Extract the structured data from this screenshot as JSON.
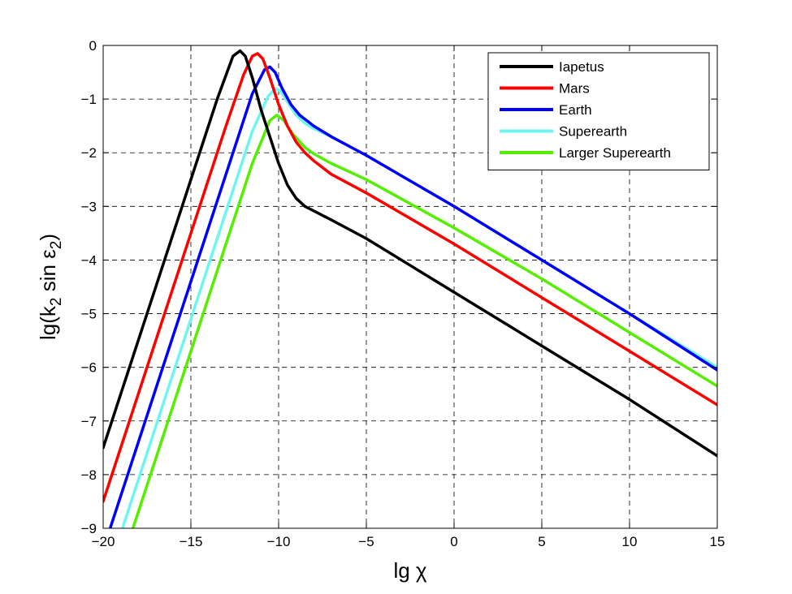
{
  "chart_data": {
    "type": "line",
    "title": "",
    "xlabel": "lg χ",
    "ylabel": {
      "prefix": "lg(k",
      "sub1": "2",
      "middle": " sin ε",
      "sub2": "2",
      "suffix": ")"
    },
    "xlim": [
      -20,
      15
    ],
    "ylim": [
      -9,
      0
    ],
    "xticks": [
      -20,
      -15,
      -10,
      -5,
      0,
      5,
      10,
      15
    ],
    "yticks": [
      0,
      -1,
      -2,
      -3,
      -4,
      -5,
      -6,
      -7,
      -8,
      -9
    ],
    "xtick_labels": [
      "−20",
      "−15",
      "−10",
      "−5",
      "0",
      "5",
      "10",
      "15"
    ],
    "ytick_labels": [
      "0",
      "−1",
      "−2",
      "−3",
      "−4",
      "−5",
      "−6",
      "−7",
      "−8",
      "−9"
    ],
    "grid": true,
    "legend_position": "top-right",
    "series": [
      {
        "name": "Iapetus",
        "color": "#000000",
        "points": [
          [
            -20,
            -7.5
          ],
          [
            -19,
            -6.5
          ],
          [
            -17,
            -4.5
          ],
          [
            -15,
            -2.5
          ],
          [
            -13.5,
            -1.0
          ],
          [
            -12.6,
            -0.2
          ],
          [
            -12.2,
            -0.1
          ],
          [
            -11.9,
            -0.2
          ],
          [
            -11.5,
            -0.6
          ],
          [
            -11,
            -1.2
          ],
          [
            -10.5,
            -1.7
          ],
          [
            -10,
            -2.2
          ],
          [
            -9.5,
            -2.6
          ],
          [
            -9,
            -2.85
          ],
          [
            -8.5,
            -3.0
          ],
          [
            -7,
            -3.25
          ],
          [
            -5,
            -3.6
          ],
          [
            0,
            -4.6
          ],
          [
            5,
            -5.6
          ],
          [
            10,
            -6.6
          ],
          [
            15,
            -7.65
          ]
        ]
      },
      {
        "name": "Mars",
        "color": "#ff0000",
        "points": [
          [
            -20,
            -8.5
          ],
          [
            -19,
            -7.5
          ],
          [
            -17,
            -5.5
          ],
          [
            -15,
            -3.5
          ],
          [
            -13,
            -1.5
          ],
          [
            -12,
            -0.55
          ],
          [
            -11.5,
            -0.2
          ],
          [
            -11.2,
            -0.15
          ],
          [
            -10.9,
            -0.25
          ],
          [
            -10.5,
            -0.6
          ],
          [
            -10,
            -1.1
          ],
          [
            -9.5,
            -1.5
          ],
          [
            -9,
            -1.8
          ],
          [
            -8.5,
            -2.0
          ],
          [
            -8,
            -2.15
          ],
          [
            -7,
            -2.4
          ],
          [
            -5,
            -2.75
          ],
          [
            0,
            -3.7
          ],
          [
            5,
            -4.7
          ],
          [
            10,
            -5.7
          ],
          [
            15,
            -6.7
          ]
        ]
      },
      {
        "name": "Earth",
        "color": "#0000ff",
        "points": [
          [
            -19.6,
            -9.0
          ],
          [
            -19,
            -8.4
          ],
          [
            -17,
            -6.4
          ],
          [
            -15,
            -4.4
          ],
          [
            -13,
            -2.4
          ],
          [
            -11.5,
            -0.9
          ],
          [
            -10.8,
            -0.45
          ],
          [
            -10.5,
            -0.4
          ],
          [
            -10.2,
            -0.5
          ],
          [
            -9.8,
            -0.8
          ],
          [
            -9.3,
            -1.1
          ],
          [
            -8.8,
            -1.3
          ],
          [
            -8,
            -1.5
          ],
          [
            -7,
            -1.7
          ],
          [
            -5,
            -2.05
          ],
          [
            0,
            -3.0
          ],
          [
            5,
            -4.0
          ],
          [
            10,
            -5.0
          ],
          [
            15,
            -6.05
          ]
        ]
      },
      {
        "name": "Superearth",
        "color": "#6ff5ef",
        "points": [
          [
            -18.9,
            -9.0
          ],
          [
            -17,
            -7.1
          ],
          [
            -15,
            -5.1
          ],
          [
            -13,
            -3.1
          ],
          [
            -11.5,
            -1.6
          ],
          [
            -10.6,
            -0.95
          ],
          [
            -10.2,
            -0.8
          ],
          [
            -9.9,
            -0.85
          ],
          [
            -9.5,
            -1.05
          ],
          [
            -9,
            -1.3
          ],
          [
            -8.5,
            -1.45
          ],
          [
            -8,
            -1.55
          ],
          [
            -7,
            -1.7
          ],
          [
            -5,
            -2.05
          ],
          [
            0,
            -3.0
          ],
          [
            5,
            -4.0
          ],
          [
            10,
            -5.0
          ],
          [
            15,
            -6.0
          ]
        ]
      },
      {
        "name": "Larger Superearth",
        "color": "#55ee00",
        "points": [
          [
            -18.3,
            -9.0
          ],
          [
            -17,
            -7.7
          ],
          [
            -15,
            -5.7
          ],
          [
            -13,
            -3.7
          ],
          [
            -11.5,
            -2.2
          ],
          [
            -10.5,
            -1.4
          ],
          [
            -10.1,
            -1.3
          ],
          [
            -9.7,
            -1.4
          ],
          [
            -9.2,
            -1.65
          ],
          [
            -8.5,
            -1.9
          ],
          [
            -8,
            -2.02
          ],
          [
            -7,
            -2.2
          ],
          [
            -5,
            -2.5
          ],
          [
            0,
            -3.4
          ],
          [
            5,
            -4.35
          ],
          [
            10,
            -5.35
          ],
          [
            15,
            -6.35
          ]
        ]
      }
    ]
  }
}
